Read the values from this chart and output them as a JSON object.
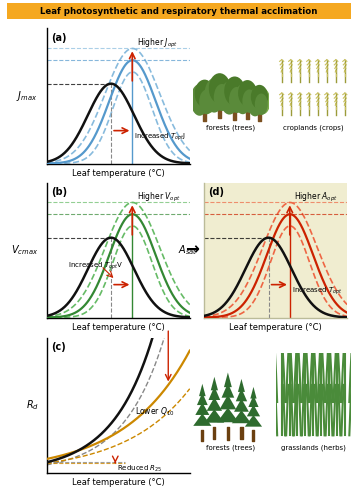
{
  "title": "Leaf photosynthetic and respiratory thermal acclimation",
  "title_bg": "#F5A820",
  "title_color": "#000000",
  "panel_a_label": "(a)",
  "panel_b_label": "(b)",
  "panel_c_label": "(c)",
  "panel_d_label": "(d)",
  "xlabel": "Leaf temperature (°C)",
  "panel_d_bg": "#F0EDD0",
  "color_black": "#111111",
  "color_blue": "#5599CC",
  "color_blue_dashed": "#88BBDD",
  "color_green": "#338833",
  "color_green_dashed": "#66BB66",
  "color_orange": "#CC8800",
  "color_red": "#CC2200",
  "color_grey": "#888888",
  "text_forests_trees_a": "forests (trees)",
  "text_croplands_crops": "croplands (crops)",
  "text_forests_trees_c": "forests (trees)",
  "text_grasslands_herbs": "grasslands (herbs)"
}
